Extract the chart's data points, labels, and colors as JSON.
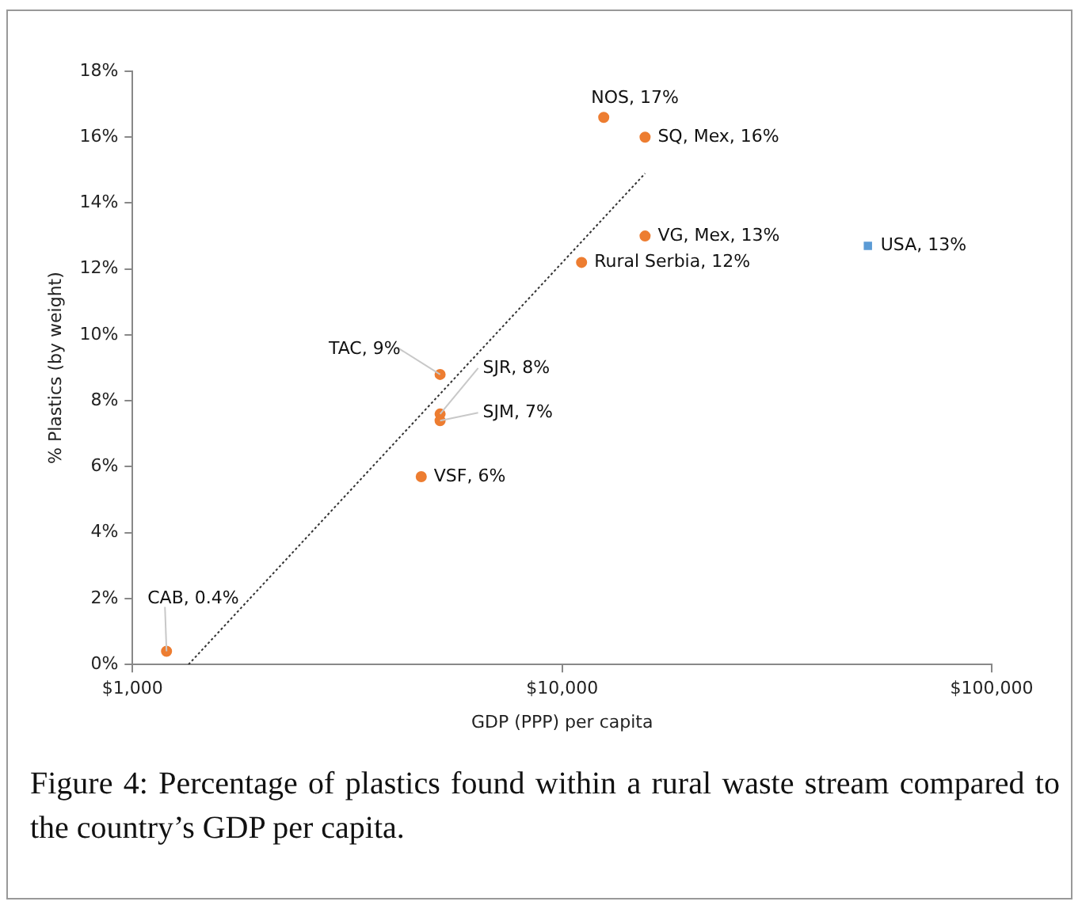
{
  "chart_data": {
    "type": "scatter",
    "xlabel": "GDP (PPP) per capita",
    "ylabel": "% Plastics (by weight)",
    "log": "x",
    "grid": false,
    "legend": false,
    "xlim": [
      1000,
      100000
    ],
    "xticks": [
      {
        "value": 1000,
        "label": "$1,000"
      },
      {
        "value": 10000,
        "label": "$10,000"
      },
      {
        "value": 100000,
        "label": "$100,000"
      }
    ],
    "ylim": [
      0,
      18
    ],
    "yticks": [
      {
        "value": 0,
        "label": "0%"
      },
      {
        "value": 2,
        "label": "2%"
      },
      {
        "value": 4,
        "label": "4%"
      },
      {
        "value": 6,
        "label": "6%"
      },
      {
        "value": 8,
        "label": "8%"
      },
      {
        "value": 10,
        "label": "10%"
      },
      {
        "value": 12,
        "label": "12%"
      },
      {
        "value": 14,
        "label": "14%"
      },
      {
        "value": 16,
        "label": "16%"
      },
      {
        "value": 18,
        "label": "18%"
      }
    ],
    "series": [
      {
        "type": "scatter",
        "color": "#ed7d31",
        "marker": "circle",
        "x": [
          12500,
          15600,
          15600,
          11100,
          5200,
          5200,
          5200,
          4700,
          1200
        ],
        "values": [
          16.6,
          16,
          13,
          12.2,
          8.8,
          7.6,
          7.4,
          5.7,
          0.4
        ]
      },
      {
        "type": "scatter",
        "color": "#5b9bd5",
        "marker": "square",
        "x": [
          51500
        ],
        "values": [
          12.7
        ]
      },
      {
        "type": "line",
        "color": "#333333",
        "marker": "none",
        "line_style": "dotted",
        "x": [
          1350,
          15600
        ],
        "values": [
          0,
          14.9
        ]
      }
    ],
    "annotations": [
      {
        "text": "NOS, 17%",
        "x": 12500,
        "y": 16.6
      },
      {
        "text": "SQ, Mex, 16%",
        "x": 15600,
        "y": 16
      },
      {
        "text": "VG, Mex, 13%",
        "x": 15600,
        "y": 13
      },
      {
        "text": "Rural Serbia, 12%",
        "x": 11100,
        "y": 12.2
      },
      {
        "text": "TAC, 9%",
        "x": 5200,
        "y": 8.8
      },
      {
        "text": "SJR, 8%",
        "x": 5200,
        "y": 7.6
      },
      {
        "text": "SJM, 7%",
        "x": 5200,
        "y": 7.4
      },
      {
        "text": "VSF, 6%",
        "x": 4700,
        "y": 5.7
      },
      {
        "text": "CAB, 0.4%",
        "x": 1200,
        "y": 0.4
      },
      {
        "text": "USA, 13%",
        "x": 51500,
        "y": 12.7
      },
      "Figure 4: Percentage of plastics found within a rural waste stream compared to the country’s GDP per capita."
    ]
  }
}
